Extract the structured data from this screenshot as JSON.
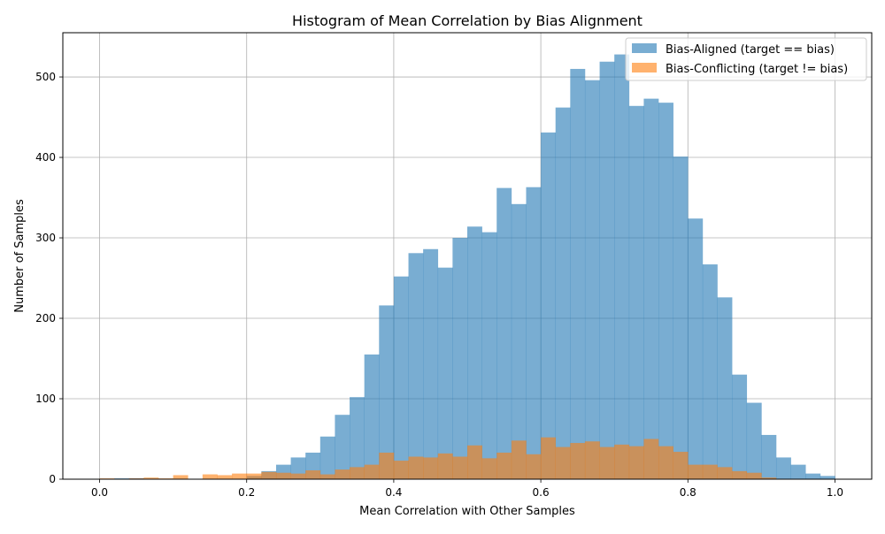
{
  "chart_data": {
    "type": "bar",
    "title": "Histogram of Mean Correlation by Bias Alignment",
    "xlabel": "Mean Correlation with Other Samples",
    "ylabel": "Number of Samples",
    "xlim": [
      -0.05,
      1.05
    ],
    "ylim": [
      0,
      555
    ],
    "xticks": [
      0.0,
      0.2,
      0.4,
      0.6,
      0.8,
      1.0
    ],
    "xtick_labels": [
      "0.0",
      "0.2",
      "0.4",
      "0.6",
      "0.8",
      "1.0"
    ],
    "yticks": [
      0,
      100,
      200,
      300,
      400,
      500
    ],
    "ytick_labels": [
      "0",
      "100",
      "200",
      "300",
      "400",
      "500"
    ],
    "grid": true,
    "legend_position": "top-right",
    "bins": {
      "start": 0.0,
      "width": 0.02,
      "count": 50
    },
    "series": [
      {
        "name": "Bias-Aligned (target == bias)",
        "color": "#1f77b4",
        "alpha": 0.6,
        "values": [
          0,
          1,
          1,
          0,
          0,
          0,
          0,
          0,
          0,
          0,
          4,
          10,
          18,
          27,
          33,
          53,
          80,
          102,
          155,
          216,
          252,
          281,
          286,
          263,
          300,
          314,
          307,
          362,
          342,
          363,
          431,
          462,
          510,
          496,
          519,
          528,
          464,
          473,
          468,
          401,
          324,
          267,
          226,
          130,
          95,
          55,
          27,
          18,
          7,
          4
        ]
      },
      {
        "name": "Bias-Conflicting (target != bias)",
        "color": "#ff7f0e",
        "alpha": 0.6,
        "values": [
          1,
          0,
          1,
          2,
          1,
          5,
          0,
          6,
          5,
          7,
          7,
          9,
          8,
          7,
          11,
          6,
          12,
          15,
          18,
          33,
          23,
          28,
          27,
          32,
          28,
          42,
          26,
          33,
          48,
          31,
          52,
          40,
          45,
          47,
          40,
          43,
          41,
          50,
          41,
          34,
          18,
          18,
          15,
          10,
          8,
          2,
          0,
          0,
          0,
          0
        ]
      }
    ]
  }
}
